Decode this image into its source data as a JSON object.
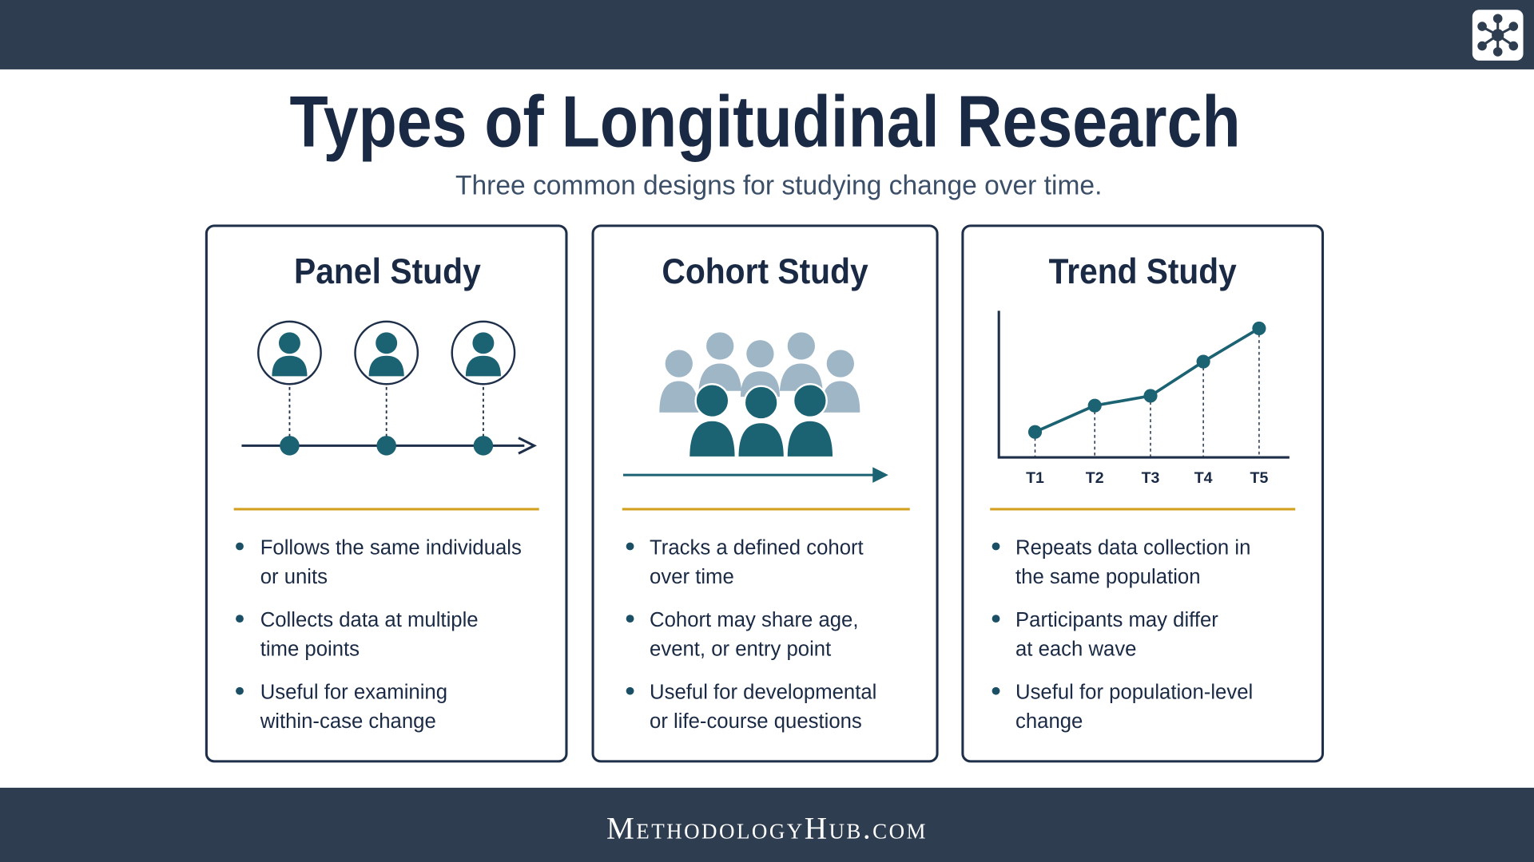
{
  "title": "Types of Longitudinal Research",
  "subtitle": "Three common designs for studying change over time.",
  "cards": [
    {
      "title": "Panel Study",
      "bullets": [
        [
          "Follows the same individuals",
          "or units"
        ],
        [
          "Collects data at multiple",
          "time points"
        ],
        [
          "Useful for examining",
          "within-case change"
        ]
      ]
    },
    {
      "title": "Cohort Study",
      "bullets": [
        [
          "Tracks a defined cohort",
          "over time"
        ],
        [
          "Cohort may share age,",
          "event, or entry point"
        ],
        [
          "Useful for developmental",
          "or life-course questions"
        ]
      ]
    },
    {
      "title": "Trend Study",
      "time_labels": [
        "T1",
        "T2",
        "T3",
        "T4",
        "T5"
      ],
      "bullets": [
        [
          "Repeats data collection in",
          "the same population"
        ],
        [
          "Participants may differ",
          "at each wave"
        ],
        [
          "Useful for population-level",
          "change"
        ]
      ]
    }
  ],
  "footer": "MethodologyHub.com"
}
